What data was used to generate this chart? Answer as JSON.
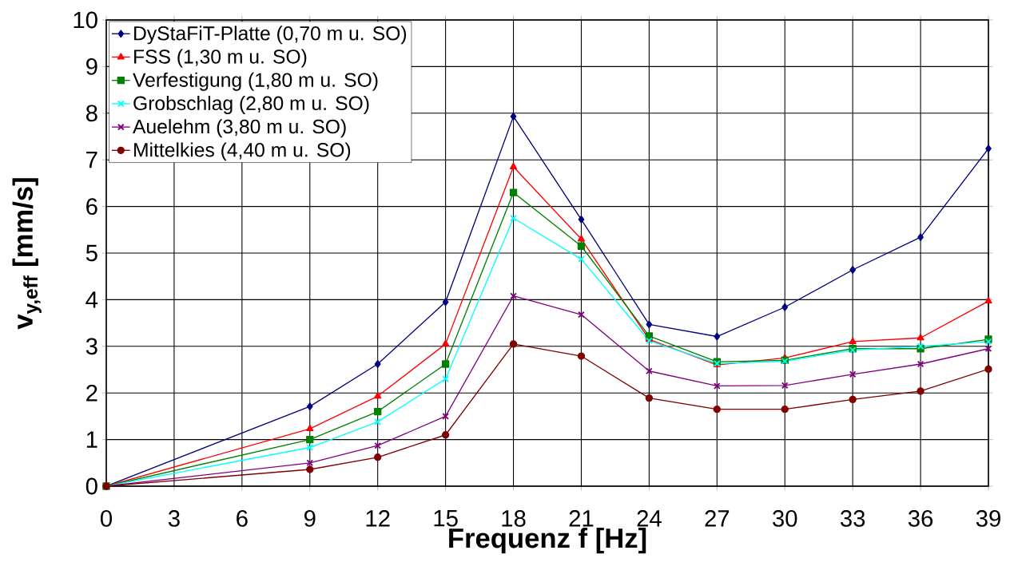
{
  "chart_data": {
    "type": "line",
    "xlabel": "Frequenz f [Hz]",
    "ylabel": "**v$_{y,eff}$ [mm/s]**",
    "x": [
      0,
      9,
      12,
      15,
      18,
      21,
      24,
      27,
      30,
      33,
      36,
      39
    ],
    "series": [
      {
        "name": "DyStaFiT-Platte  (0,70 m u. SO)",
        "color": "#000080",
        "marker": "diamond",
        "values": [
          0,
          1.71,
          2.62,
          3.95,
          7.93,
          5.72,
          3.47,
          3.21,
          3.84,
          4.64,
          5.34,
          7.24
        ]
      },
      {
        "name": "FSS (1,30 m u. SO)",
        "color": "#ff0000",
        "marker": "triangle",
        "values": [
          0,
          1.23,
          1.93,
          3.05,
          6.85,
          5.3,
          3.15,
          2.6,
          2.75,
          3.1,
          3.18,
          3.97
        ]
      },
      {
        "name": "Verfestigung (1,80 m u. SO)",
        "color": "#008000",
        "marker": "square",
        "values": [
          0,
          1.0,
          1.6,
          2.62,
          6.3,
          5.15,
          3.22,
          2.67,
          2.7,
          2.95,
          2.95,
          3.15
        ]
      },
      {
        "name": "Grobschlag (2,80 m u. SO)",
        "color": "#00ffff",
        "marker": "cross",
        "values": [
          0,
          0.83,
          1.38,
          2.3,
          5.75,
          4.87,
          3.12,
          2.63,
          2.68,
          2.92,
          3.0,
          3.1
        ]
      },
      {
        "name": "Auelehm (3,80 m u. SO)",
        "color": "#800080",
        "marker": "cross",
        "values": [
          0,
          0.5,
          0.87,
          1.5,
          4.08,
          3.68,
          2.47,
          2.15,
          2.16,
          2.4,
          2.62,
          2.95
        ]
      },
      {
        "name": "Mittelkies (4,40 m u. SO)",
        "color": "#800000",
        "marker": "circle",
        "values": [
          0,
          0.36,
          0.62,
          1.1,
          3.05,
          2.79,
          1.89,
          1.65,
          1.65,
          1.86,
          2.04,
          2.51
        ]
      }
    ],
    "xlim": [
      0,
      39
    ],
    "xticks": [
      0,
      3,
      6,
      9,
      12,
      15,
      18,
      21,
      24,
      27,
      30,
      33,
      36,
      39
    ],
    "ylim": [
      0,
      10
    ],
    "yticks": [
      0,
      1,
      2,
      3,
      4,
      5,
      6,
      7,
      8,
      9,
      10
    ],
    "grid": true,
    "legend": "top left",
    "line_style": "solid"
  }
}
